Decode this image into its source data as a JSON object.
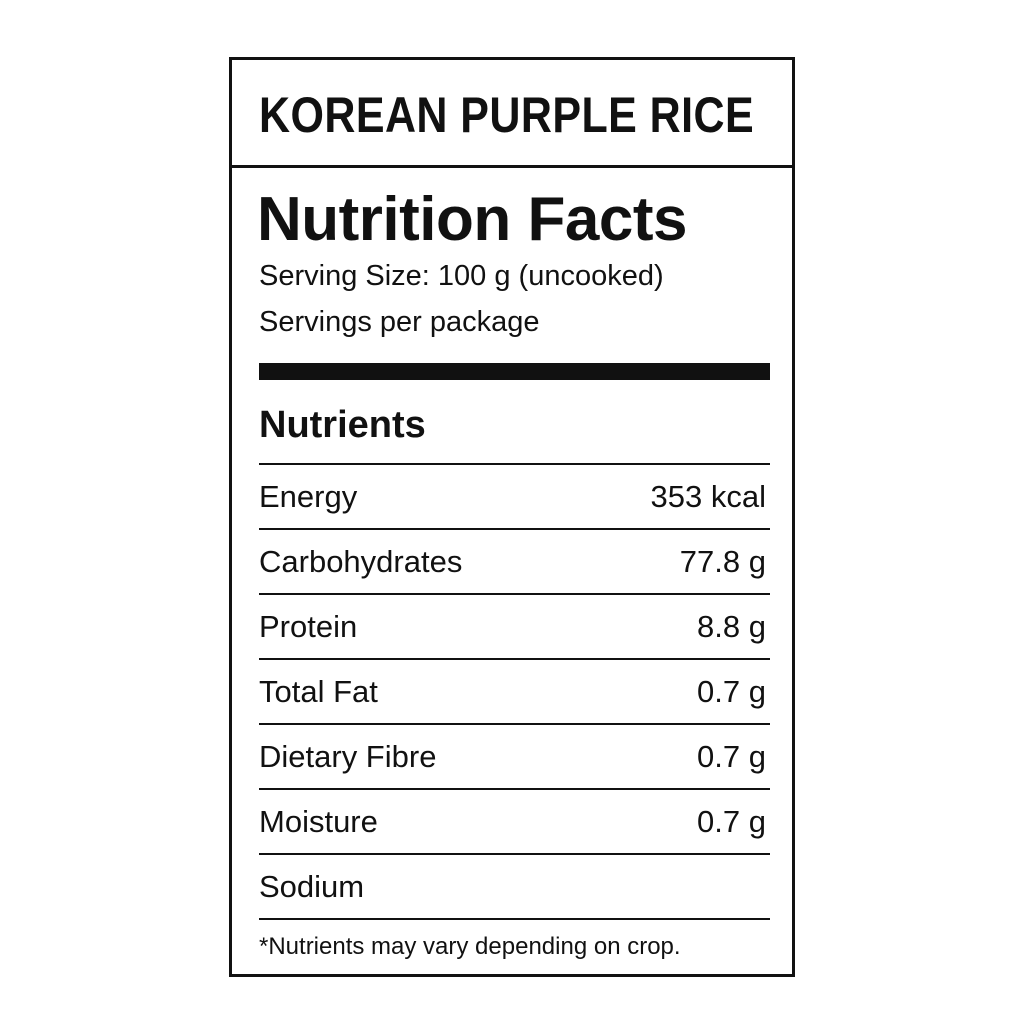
{
  "product_name": "KOREAN PURPLE RICE",
  "heading": "Nutrition Facts",
  "serving_size": "Serving Size: 100 g (uncooked)",
  "servings_per_package": "Servings per package",
  "section_title": "Nutrients",
  "nutrients": [
    {
      "name": "Energy",
      "value": "353 kcal"
    },
    {
      "name": "Carbohydrates",
      "value": "77.8 g"
    },
    {
      "name": "Protein",
      "value": "8.8 g"
    },
    {
      "name": "Total Fat",
      "value": "0.7 g"
    },
    {
      "name": "Dietary Fibre",
      "value": "0.7 g"
    },
    {
      "name": "Moisture",
      "value": "0.7 g"
    },
    {
      "name": "Sodium",
      "value": ""
    }
  ],
  "footnote": "*Nutrients may vary depending on crop."
}
